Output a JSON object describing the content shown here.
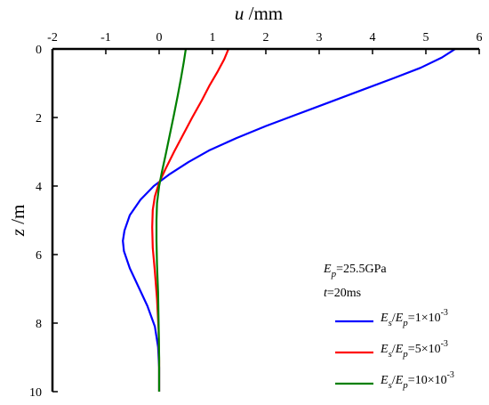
{
  "chart_data": {
    "type": "line",
    "x_axis_title": {
      "var": "u",
      "unit": " /mm"
    },
    "y_axis_title": {
      "var": "z",
      "unit": " /m"
    },
    "xlim": [
      -2,
      6
    ],
    "ylim": [
      0,
      10
    ],
    "x_ticks": [
      -2,
      -1,
      0,
      1,
      2,
      3,
      4,
      5,
      6
    ],
    "y_ticks": [
      0,
      2,
      4,
      6,
      8,
      10
    ],
    "y_axis_inverted": true,
    "x_axis_position": "top",
    "grid": false,
    "legend_position": "bottom-right",
    "annotations": [
      {
        "var": "E",
        "sub": "p",
        "text": "=25.5GPa"
      },
      {
        "var": "t",
        "sub": "",
        "text": "=20ms"
      }
    ],
    "series": [
      {
        "name": "Es/Ep=1×10-3",
        "name_parts": {
          "num": "E",
          "num_sub": "s",
          "den": "E",
          "den_sub": "p",
          "rhs": "=1×10",
          "exp": "-3"
        },
        "color": "#0000ff",
        "points": [
          [
            5.55,
            0
          ],
          [
            5.3,
            0.25
          ],
          [
            4.9,
            0.55
          ],
          [
            4.4,
            0.85
          ],
          [
            3.8,
            1.2
          ],
          [
            3.2,
            1.55
          ],
          [
            2.6,
            1.9
          ],
          [
            2.0,
            2.25
          ],
          [
            1.45,
            2.6
          ],
          [
            0.95,
            2.95
          ],
          [
            0.55,
            3.3
          ],
          [
            0.2,
            3.65
          ],
          [
            -0.1,
            4.0
          ],
          [
            -0.35,
            4.4
          ],
          [
            -0.55,
            4.85
          ],
          [
            -0.65,
            5.3
          ],
          [
            -0.68,
            5.6
          ],
          [
            -0.66,
            5.9
          ],
          [
            -0.55,
            6.4
          ],
          [
            -0.4,
            6.9
          ],
          [
            -0.22,
            7.5
          ],
          [
            -0.08,
            8.1
          ],
          [
            -0.02,
            8.7
          ],
          [
            0.0,
            9.3
          ],
          [
            0.0,
            10
          ]
        ]
      },
      {
        "name": "Es/Ep=5×10-3",
        "name_parts": {
          "num": "E",
          "num_sub": "s",
          "den": "E",
          "den_sub": "p",
          "rhs": "=5×10",
          "exp": "-3"
        },
        "color": "#ff0000",
        "points": [
          [
            1.3,
            0
          ],
          [
            1.22,
            0.3
          ],
          [
            1.1,
            0.65
          ],
          [
            0.95,
            1.05
          ],
          [
            0.8,
            1.5
          ],
          [
            0.62,
            2.0
          ],
          [
            0.45,
            2.5
          ],
          [
            0.28,
            3.0
          ],
          [
            0.12,
            3.5
          ],
          [
            0.0,
            3.9
          ],
          [
            -0.08,
            4.3
          ],
          [
            -0.12,
            4.7
          ],
          [
            -0.13,
            5.2
          ],
          [
            -0.12,
            5.8
          ],
          [
            -0.08,
            6.5
          ],
          [
            -0.04,
            7.3
          ],
          [
            -0.01,
            8.2
          ],
          [
            0.0,
            9.1
          ],
          [
            0.0,
            10
          ]
        ]
      },
      {
        "name": "Es/Ep=10×10-3",
        "name_parts": {
          "num": "E",
          "num_sub": "s",
          "den": "E",
          "den_sub": "p",
          "rhs": "=10×10",
          "exp": "-3"
        },
        "color": "#008000",
        "points": [
          [
            0.5,
            0
          ],
          [
            0.46,
            0.4
          ],
          [
            0.41,
            0.85
          ],
          [
            0.35,
            1.35
          ],
          [
            0.28,
            1.9
          ],
          [
            0.2,
            2.5
          ],
          [
            0.12,
            3.1
          ],
          [
            0.05,
            3.6
          ],
          [
            0.0,
            4.0
          ],
          [
            -0.04,
            4.5
          ],
          [
            -0.05,
            5.0
          ],
          [
            -0.05,
            5.6
          ],
          [
            -0.04,
            6.3
          ],
          [
            -0.02,
            7.1
          ],
          [
            -0.01,
            8.0
          ],
          [
            0.0,
            9.0
          ],
          [
            0.0,
            10
          ]
        ]
      }
    ]
  }
}
